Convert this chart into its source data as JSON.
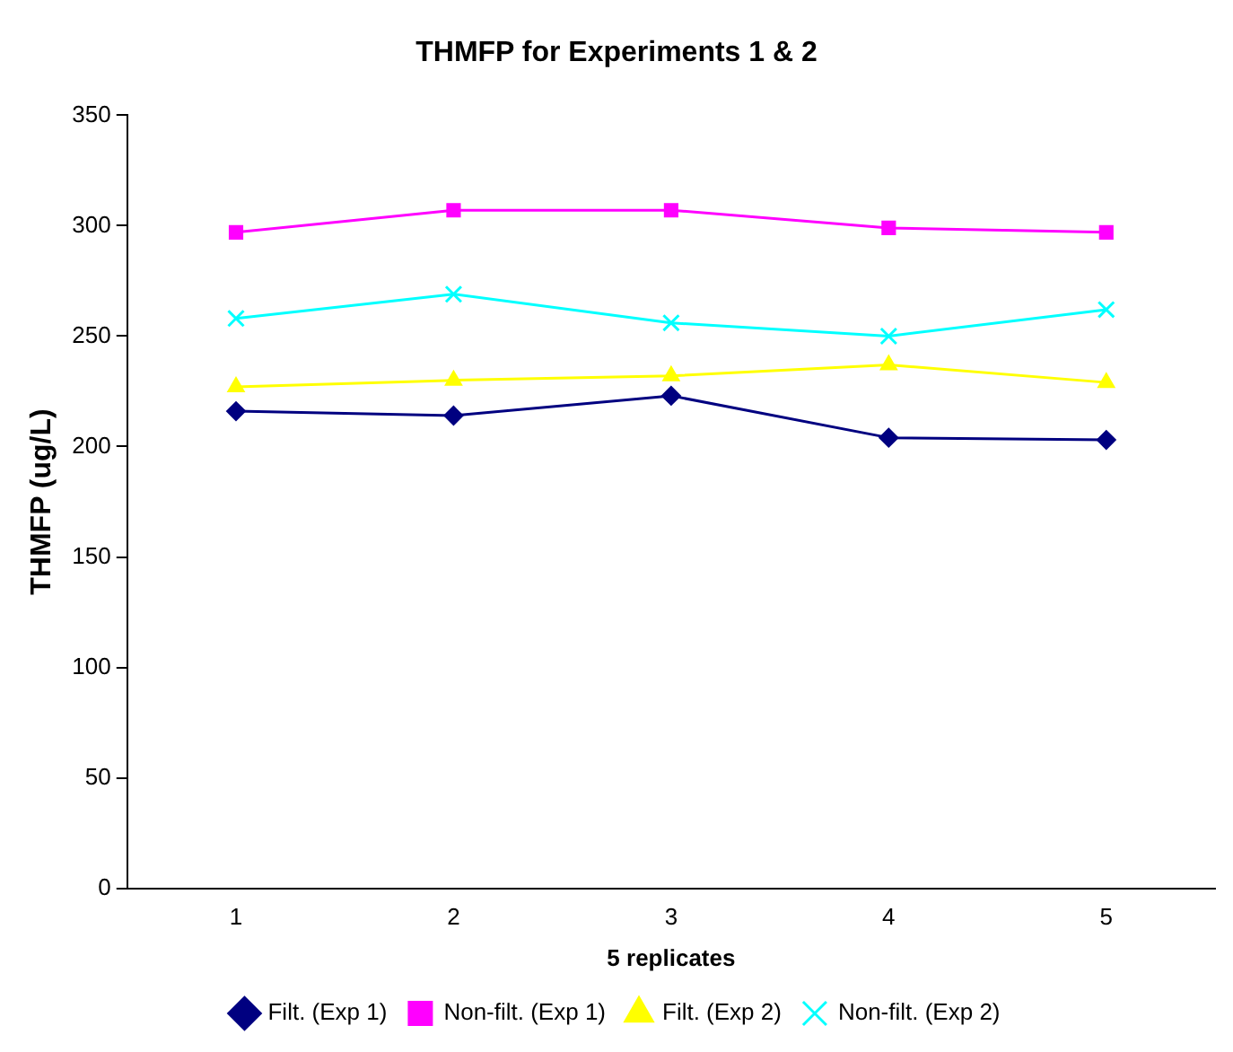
{
  "chart_data": {
    "type": "line",
    "title": "THMFP for Experiments 1 & 2",
    "xlabel": "5 replicates",
    "ylabel": "THMFP (ug/L)",
    "categories": [
      "1",
      "2",
      "3",
      "4",
      "5"
    ],
    "ylim": [
      0,
      350
    ],
    "yticks": [
      0,
      50,
      100,
      150,
      200,
      250,
      300,
      350
    ],
    "grid": false,
    "legend": "bottom",
    "series": [
      {
        "name": "Filt. (Exp 1)",
        "color": "#000080",
        "marker": "diamond",
        "values": [
          216,
          214,
          223,
          204,
          203
        ]
      },
      {
        "name": "Non-filt. (Exp 1)",
        "color": "#ff00ff",
        "marker": "square",
        "values": [
          297,
          307,
          307,
          299,
          297
        ]
      },
      {
        "name": "Filt. (Exp 2)",
        "color": "#ffff00",
        "marker": "triangle",
        "values": [
          227,
          230,
          232,
          237,
          229
        ]
      },
      {
        "name": "Non-filt. (Exp 2)",
        "color": "#00ffff",
        "marker": "cross",
        "values": [
          258,
          269,
          256,
          250,
          262
        ]
      }
    ]
  }
}
